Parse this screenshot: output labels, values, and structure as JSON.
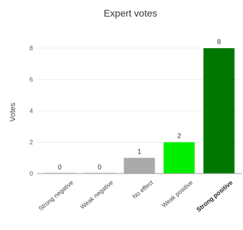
{
  "chart_data": {
    "type": "bar",
    "title": "Expert votes",
    "xlabel": "",
    "ylabel": "Votes",
    "categories": [
      "Strong negative",
      "Weak negative",
      "No effect",
      "Weak positive",
      "Strong positive"
    ],
    "values": [
      0,
      0,
      1,
      2,
      8
    ],
    "colors": [
      "#e0e0e0",
      "#e0e0e0",
      "#aaaaaa",
      "#00ee00",
      "#007700"
    ],
    "bold_categories": [
      "Strong positive"
    ],
    "ylim": [
      0,
      8
    ],
    "yticks": [
      0,
      2,
      4,
      6,
      8
    ],
    "grid": true,
    "legend": "none"
  }
}
